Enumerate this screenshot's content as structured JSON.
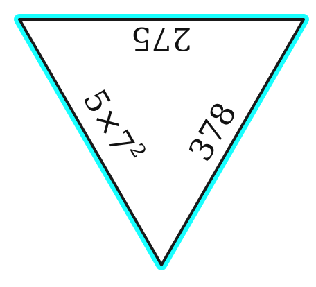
{
  "colors": {
    "background": "#ffffff",
    "edge_highlight": "#00ffff",
    "triangle_fill": "#ffffff",
    "triangle_stroke": "#1a1a1a",
    "label_text": "#111111"
  },
  "triangle": {
    "top_edge_label": "275",
    "left_edge_label_base": "5×7",
    "left_edge_label_exponent": "2",
    "right_edge_label": "378"
  }
}
